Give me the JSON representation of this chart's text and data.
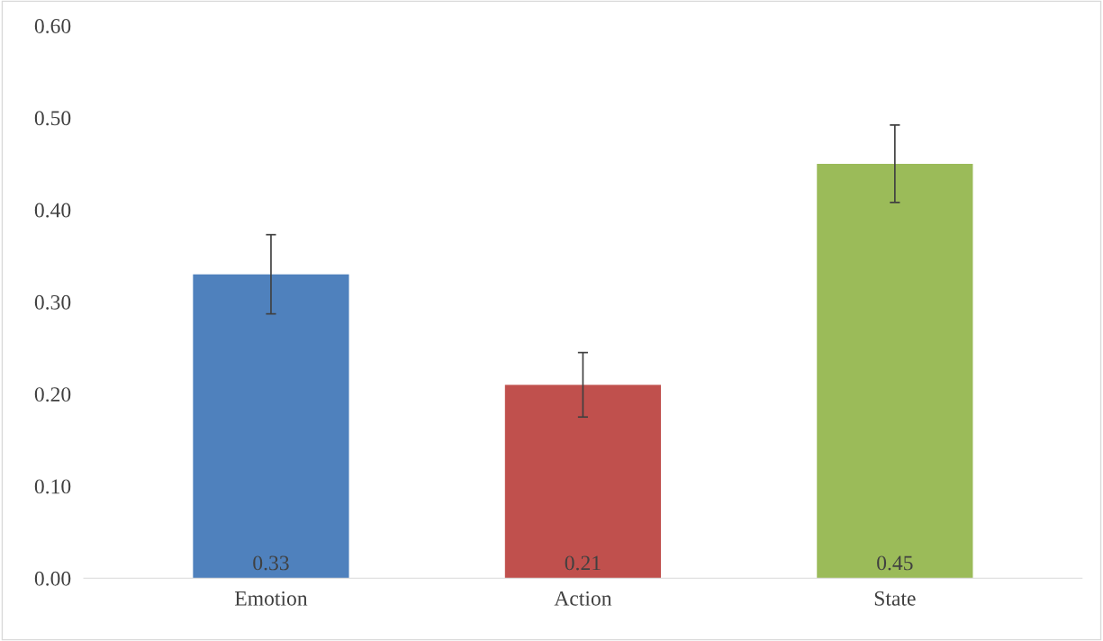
{
  "chart_data": {
    "type": "bar",
    "categories": [
      "Emotion",
      "Action",
      "State"
    ],
    "values": [
      0.33,
      0.21,
      0.45
    ],
    "colors": [
      "#4f81bd",
      "#c0504d",
      "#9bbb59"
    ],
    "errors": [
      0.043,
      0.035,
      0.042
    ],
    "data_labels": true,
    "ylim": [
      0,
      0.6
    ],
    "yticks": [
      {
        "value": 0,
        "label": "0.00"
      },
      {
        "value": 0.1,
        "label": "0.10"
      },
      {
        "value": 0.2,
        "label": "0.20"
      },
      {
        "value": 0.3,
        "label": "0.30"
      },
      {
        "value": 0.4,
        "label": "0.40"
      },
      {
        "value": 0.5,
        "label": "0.50"
      },
      {
        "value": 0.6,
        "label": "0.60"
      }
    ],
    "grid": false,
    "legend": false
  }
}
